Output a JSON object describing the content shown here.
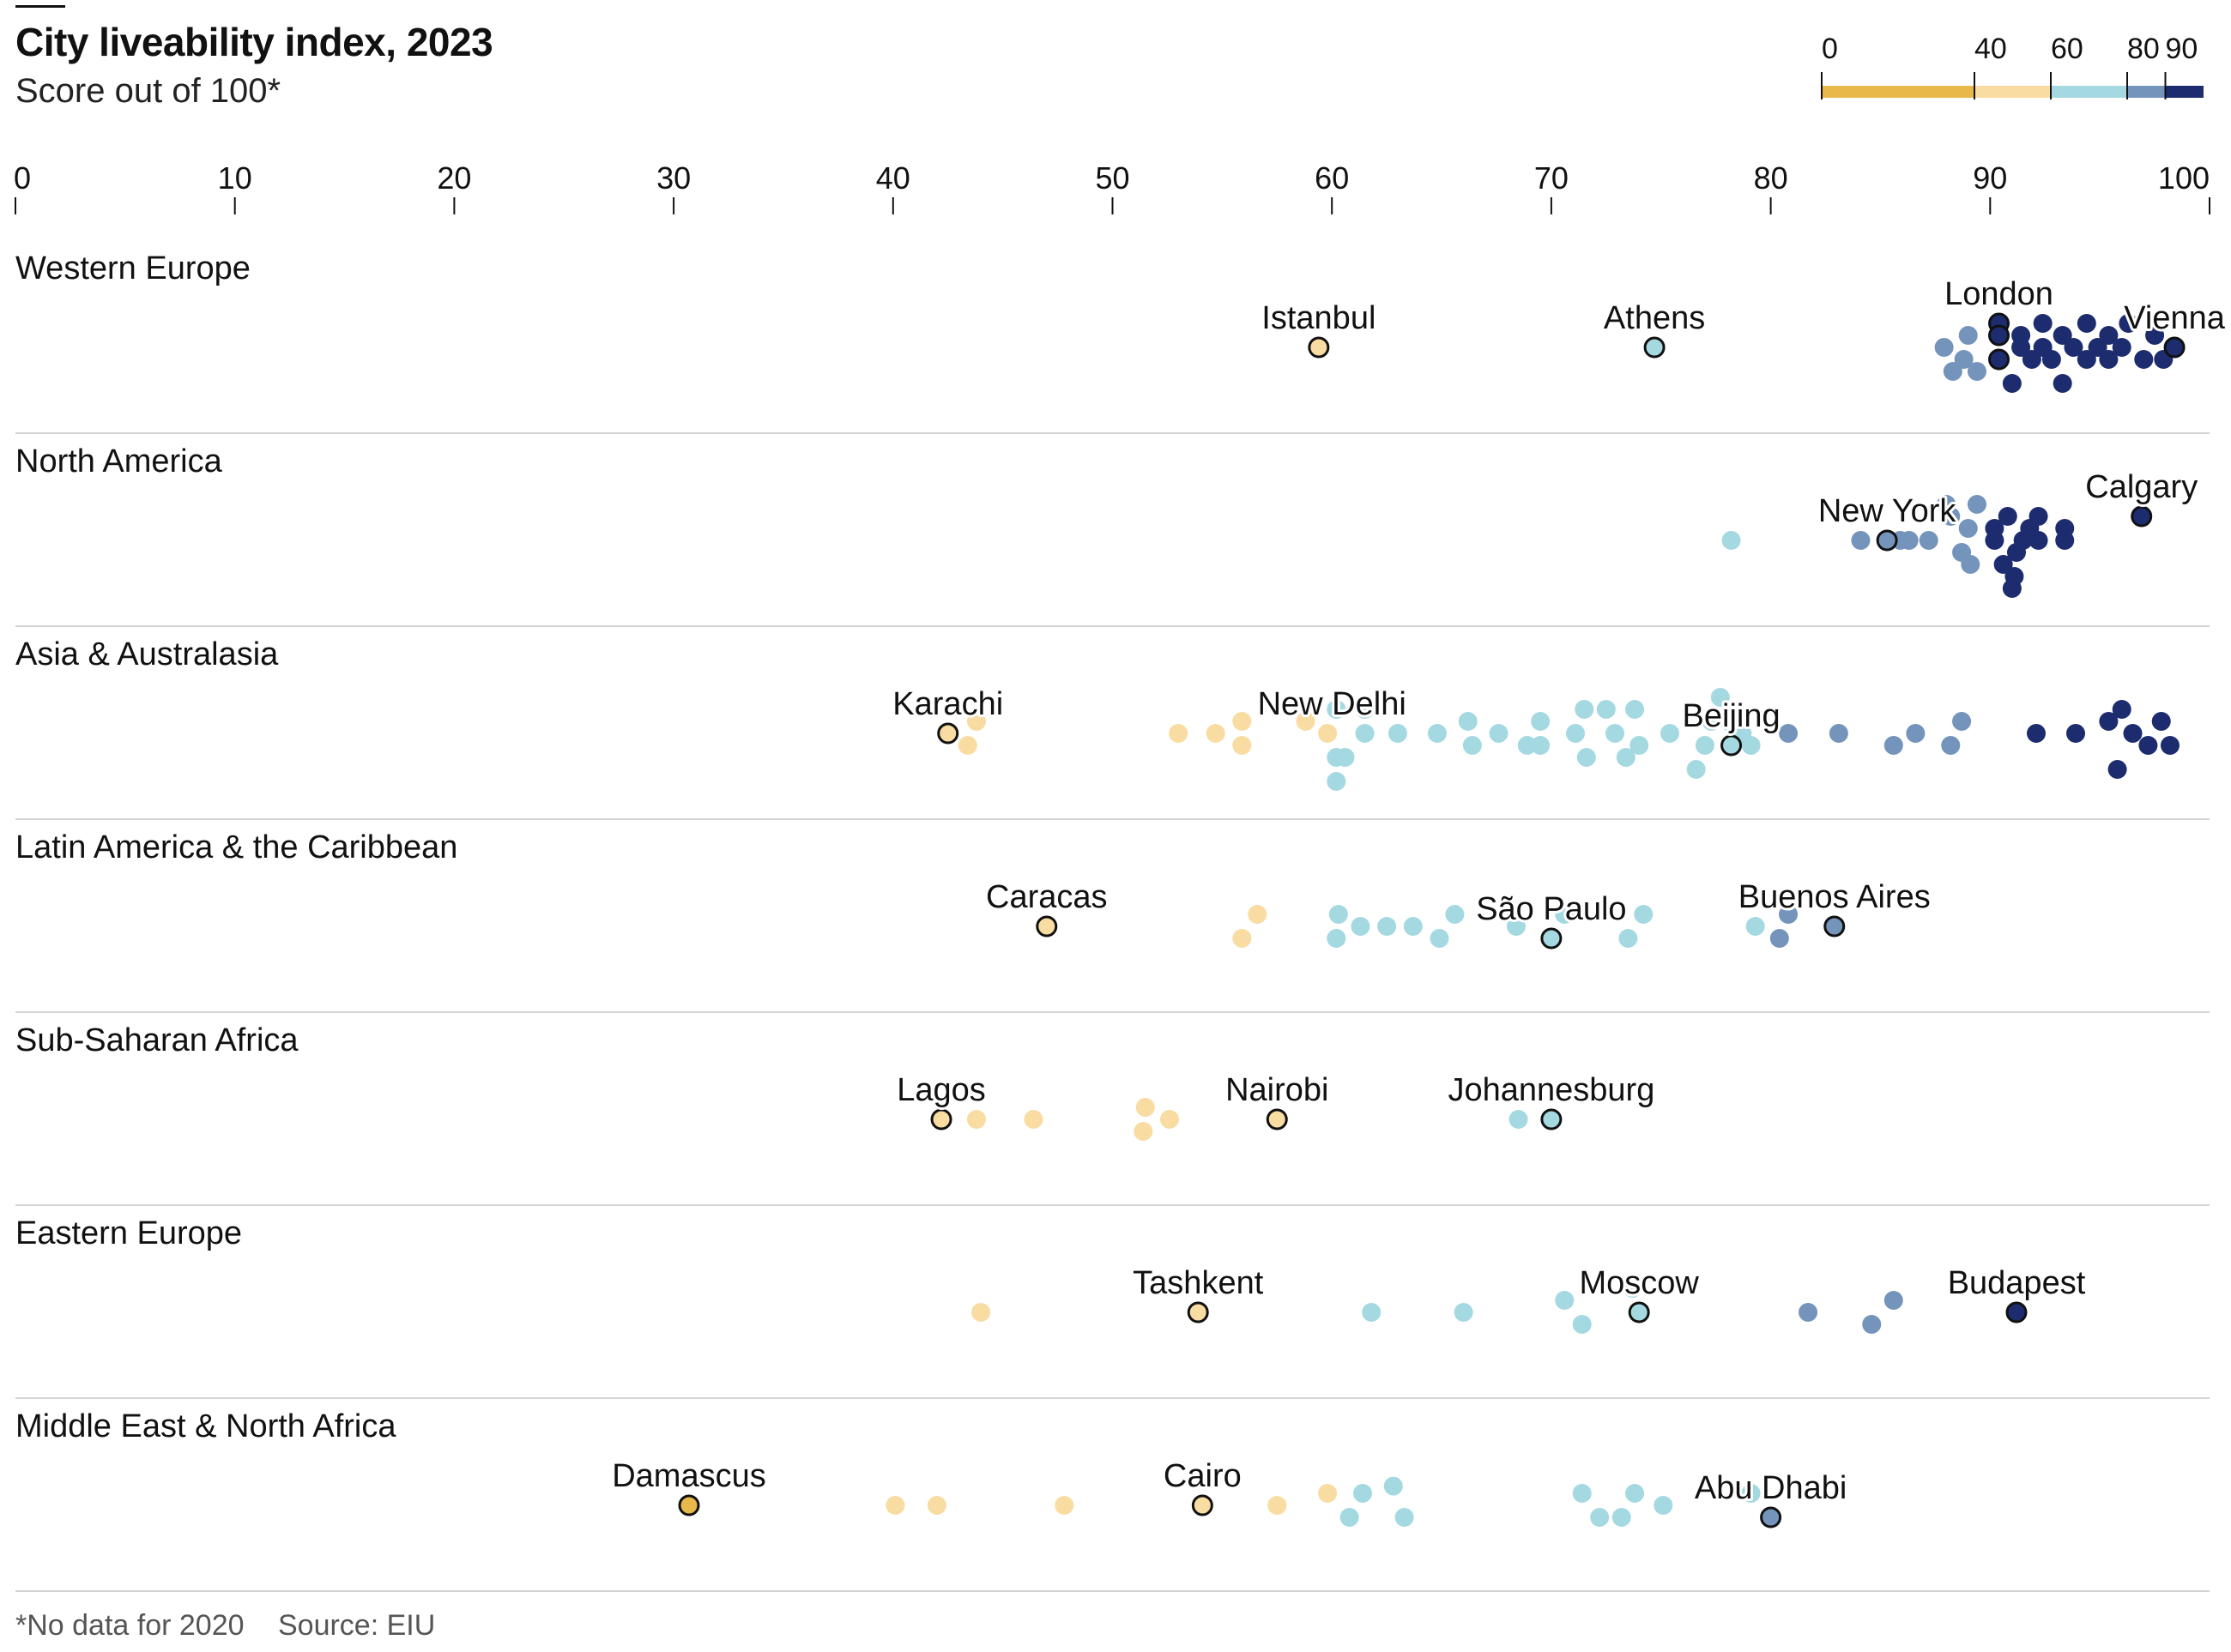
{
  "title": "City liveability index, 2023",
  "subtitle": "Score out of 100*",
  "footnote": "*No data for 2020",
  "source": "Source: EIU",
  "chart_data": {
    "type": "scatter",
    "xlim": [
      0,
      100
    ],
    "x_ticks": [
      "0",
      "10",
      "20",
      "30",
      "40",
      "50",
      "60",
      "70",
      "80",
      "90",
      "100"
    ],
    "color_scale": {
      "ticks": [
        "0",
        "40",
        "60",
        "80",
        "90"
      ],
      "bins": [
        {
          "from": 0,
          "to": 40,
          "color": "#E8B84A"
        },
        {
          "from": 40,
          "to": 60,
          "color": "#F8DCA2"
        },
        {
          "from": 60,
          "to": 80,
          "color": "#A5D9E1"
        },
        {
          "from": 80,
          "to": 90,
          "color": "#7494BB"
        },
        {
          "from": 90,
          "to": 100,
          "color": "#1D2C6E"
        }
      ]
    },
    "groups": [
      {
        "name": "Western Europe",
        "points": [
          [
            59.4,
            0
          ],
          [
            74.7,
            0
          ],
          [
            90.4,
            -1
          ],
          [
            98.4,
            0
          ],
          [
            87.9,
            0
          ],
          [
            88.8,
            0.5
          ],
          [
            89.0,
            -0.5
          ],
          [
            88.3,
            1
          ],
          [
            89.4,
            1
          ],
          [
            90.4,
            0.5
          ],
          [
            90.4,
            -0.5
          ],
          [
            91.0,
            1.5
          ],
          [
            91.4,
            0
          ],
          [
            91.9,
            0.5
          ],
          [
            91.4,
            -0.5
          ],
          [
            92.4,
            -1
          ],
          [
            92.4,
            0
          ],
          [
            92.8,
            0.5
          ],
          [
            93.3,
            1.5
          ],
          [
            93.3,
            -0.5
          ],
          [
            93.8,
            0
          ],
          [
            94.4,
            -1
          ],
          [
            94.4,
            0.5
          ],
          [
            94.9,
            0
          ],
          [
            95.4,
            -0.5
          ],
          [
            95.4,
            0.5
          ],
          [
            96.0,
            0
          ],
          [
            96.3,
            -1
          ],
          [
            97.0,
            0.5
          ],
          [
            97.5,
            -0.5
          ],
          [
            97.9,
            0.5
          ]
        ],
        "labels": [
          {
            "text": "Istanbul",
            "score": 59.4,
            "dy": -2
          },
          {
            "text": "Athens",
            "score": 74.7,
            "dy": -2
          },
          {
            "text": "London",
            "score": 90.4,
            "dy": -2
          },
          {
            "text": "Vienna",
            "score": 98.4,
            "dy": -2
          }
        ]
      },
      {
        "name": "North America",
        "points": [
          [
            78.2,
            0
          ],
          [
            85.3,
            0
          ],
          [
            96.9,
            -1
          ],
          [
            84.1,
            0
          ],
          [
            85.9,
            0
          ],
          [
            86.3,
            0
          ],
          [
            87.2,
            0
          ],
          [
            88.2,
            -1
          ],
          [
            88.7,
            0.5
          ],
          [
            88.0,
            -1.5
          ],
          [
            89.1,
            1
          ],
          [
            89.0,
            -0.5
          ],
          [
            89.4,
            -1.5
          ],
          [
            90.2,
            -0.5
          ],
          [
            90.2,
            0
          ],
          [
            90.8,
            -1
          ],
          [
            91.2,
            0.5
          ],
          [
            91.5,
            0
          ],
          [
            91.8,
            -0.5
          ],
          [
            90.6,
            1
          ],
          [
            91.1,
            1.5
          ],
          [
            92.2,
            0
          ],
          [
            92.2,
            -1
          ],
          [
            93.4,
            0
          ],
          [
            93.4,
            -0.5
          ],
          [
            91.0,
            2
          ]
        ],
        "labels": [
          {
            "text": "New York",
            "score": 85.3,
            "dy": -2
          },
          {
            "text": "Calgary",
            "score": 96.9,
            "dy": -2
          }
        ]
      },
      {
        "name": "Asia & Australasia",
        "points": [
          [
            42.5,
            0
          ],
          [
            43.8,
            -0.5
          ],
          [
            43.4,
            0.5
          ],
          [
            53.0,
            0
          ],
          [
            54.7,
            0
          ],
          [
            55.9,
            -0.5
          ],
          [
            55.9,
            0.5
          ],
          [
            58.8,
            -0.5
          ],
          [
            59.8,
            0
          ],
          [
            60.2,
            2
          ],
          [
            60.2,
            -1
          ],
          [
            60.2,
            1
          ],
          [
            61.5,
            0
          ],
          [
            61.5,
            -1
          ],
          [
            60.6,
            1
          ],
          [
            63.0,
            0
          ],
          [
            64.8,
            0
          ],
          [
            66.2,
            -0.5
          ],
          [
            66.4,
            0.5
          ],
          [
            67.6,
            0
          ],
          [
            68.9,
            0.5
          ],
          [
            69.5,
            -0.5
          ],
          [
            69.5,
            0.5
          ],
          [
            71.1,
            0
          ],
          [
            71.5,
            -1
          ],
          [
            71.6,
            1
          ],
          [
            72.5,
            -1
          ],
          [
            72.9,
            0
          ],
          [
            73.4,
            1
          ],
          [
            73.8,
            -1
          ],
          [
            74.0,
            0.5
          ],
          [
            75.4,
            0
          ],
          [
            77.0,
            0.5
          ],
          [
            76.6,
            1.5
          ],
          [
            77.3,
            -0.5
          ],
          [
            77.7,
            -1.5
          ],
          [
            78.1,
            -0.5
          ],
          [
            78.2,
            0.5
          ],
          [
            78.7,
            0
          ],
          [
            79.1,
            0.5
          ],
          [
            80.8,
            0
          ],
          [
            83.1,
            0
          ],
          [
            85.6,
            0.5
          ],
          [
            86.6,
            0
          ],
          [
            88.2,
            0.5
          ],
          [
            88.7,
            -0.5
          ],
          [
            92.1,
            0
          ],
          [
            93.9,
            0
          ],
          [
            95.4,
            -0.5
          ],
          [
            95.8,
            1.5
          ],
          [
            96.0,
            -1
          ],
          [
            96.5,
            0
          ],
          [
            97.2,
            0.5
          ],
          [
            97.8,
            -0.5
          ],
          [
            98.2,
            0.5
          ]
        ],
        "labels": [
          {
            "text": "Karachi",
            "score": 42.5,
            "dy": -2
          },
          {
            "text": "New Delhi",
            "score": 60.0,
            "dy": 1
          },
          {
            "text": "Beijing",
            "score": 78.2,
            "dy": -2
          }
        ]
      },
      {
        "name": "Latin America & the Caribbean",
        "points": [
          [
            47.0,
            0
          ],
          [
            70.0,
            0.5
          ],
          [
            82.9,
            0
          ],
          [
            55.9,
            0.5
          ],
          [
            56.6,
            -0.5
          ],
          [
            60.2,
            0.5
          ],
          [
            60.3,
            -0.5
          ],
          [
            61.3,
            0
          ],
          [
            62.5,
            0
          ],
          [
            63.7,
            0
          ],
          [
            64.9,
            0.5
          ],
          [
            65.6,
            -0.5
          ],
          [
            68.4,
            0
          ],
          [
            70.6,
            -0.5
          ],
          [
            73.5,
            0.5
          ],
          [
            74.2,
            -0.5
          ],
          [
            79.3,
            0
          ],
          [
            80.4,
            0.5
          ],
          [
            80.8,
            -0.5
          ]
        ],
        "labels": [
          {
            "text": "Caracas",
            "score": 47.0,
            "dy": -2
          },
          {
            "text": "São Paulo",
            "score": 70.0,
            "dy": -2
          },
          {
            "text": "Buenos Aires",
            "score": 82.9,
            "dy": -2
          }
        ]
      },
      {
        "name": "Sub-Saharan Africa",
        "points": [
          [
            42.2,
            0
          ],
          [
            57.5,
            0
          ],
          [
            70.0,
            0
          ],
          [
            43.8,
            0
          ],
          [
            46.4,
            0
          ],
          [
            51.4,
            0.5
          ],
          [
            51.5,
            -0.5
          ],
          [
            52.6,
            0
          ],
          [
            68.5,
            0
          ]
        ],
        "labels": [
          {
            "text": "Lagos",
            "score": 42.2,
            "dy": -2
          },
          {
            "text": "Nairobi",
            "score": 57.5,
            "dy": -2
          },
          {
            "text": "Johannesburg",
            "score": 70.0,
            "dy": -2
          }
        ]
      },
      {
        "name": "Eastern Europe",
        "points": [
          [
            53.9,
            0
          ],
          [
            74.0,
            0
          ],
          [
            91.2,
            0
          ],
          [
            44.0,
            0
          ],
          [
            61.8,
            0
          ],
          [
            66.0,
            0
          ],
          [
            71.4,
            0.5
          ],
          [
            70.6,
            -0.5
          ],
          [
            73.7,
            -1
          ],
          [
            81.7,
            0
          ],
          [
            84.6,
            0.5
          ],
          [
            85.6,
            -0.5
          ]
        ],
        "labels": [
          {
            "text": "Tashkent",
            "score": 53.9,
            "dy": -2
          },
          {
            "text": "Moscow",
            "score": 74.0,
            "dy": -2
          },
          {
            "text": "Budapest",
            "score": 91.2,
            "dy": -2
          }
        ]
      },
      {
        "name": "Middle East & North Africa",
        "points": [
          [
            30.7,
            0
          ],
          [
            54.1,
            0
          ],
          [
            80.0,
            0.5
          ],
          [
            40.1,
            0
          ],
          [
            42.0,
            0
          ],
          [
            47.8,
            0
          ],
          [
            57.5,
            0
          ],
          [
            59.8,
            -0.5
          ],
          [
            60.8,
            0.5
          ],
          [
            61.4,
            -0.5
          ],
          [
            62.8,
            -0.8
          ],
          [
            63.3,
            0.5
          ],
          [
            71.4,
            -0.5
          ],
          [
            72.2,
            0.5
          ],
          [
            73.2,
            0.5
          ],
          [
            73.8,
            -0.5
          ],
          [
            75.1,
            0
          ],
          [
            79.1,
            -0.5
          ]
        ],
        "labels": [
          {
            "text": "Damascus",
            "score": 30.7,
            "dy": -2
          },
          {
            "text": "Cairo",
            "score": 54.1,
            "dy": -2
          },
          {
            "text": "Abu Dhabi",
            "score": 80.0,
            "dy": -2
          }
        ]
      }
    ]
  }
}
